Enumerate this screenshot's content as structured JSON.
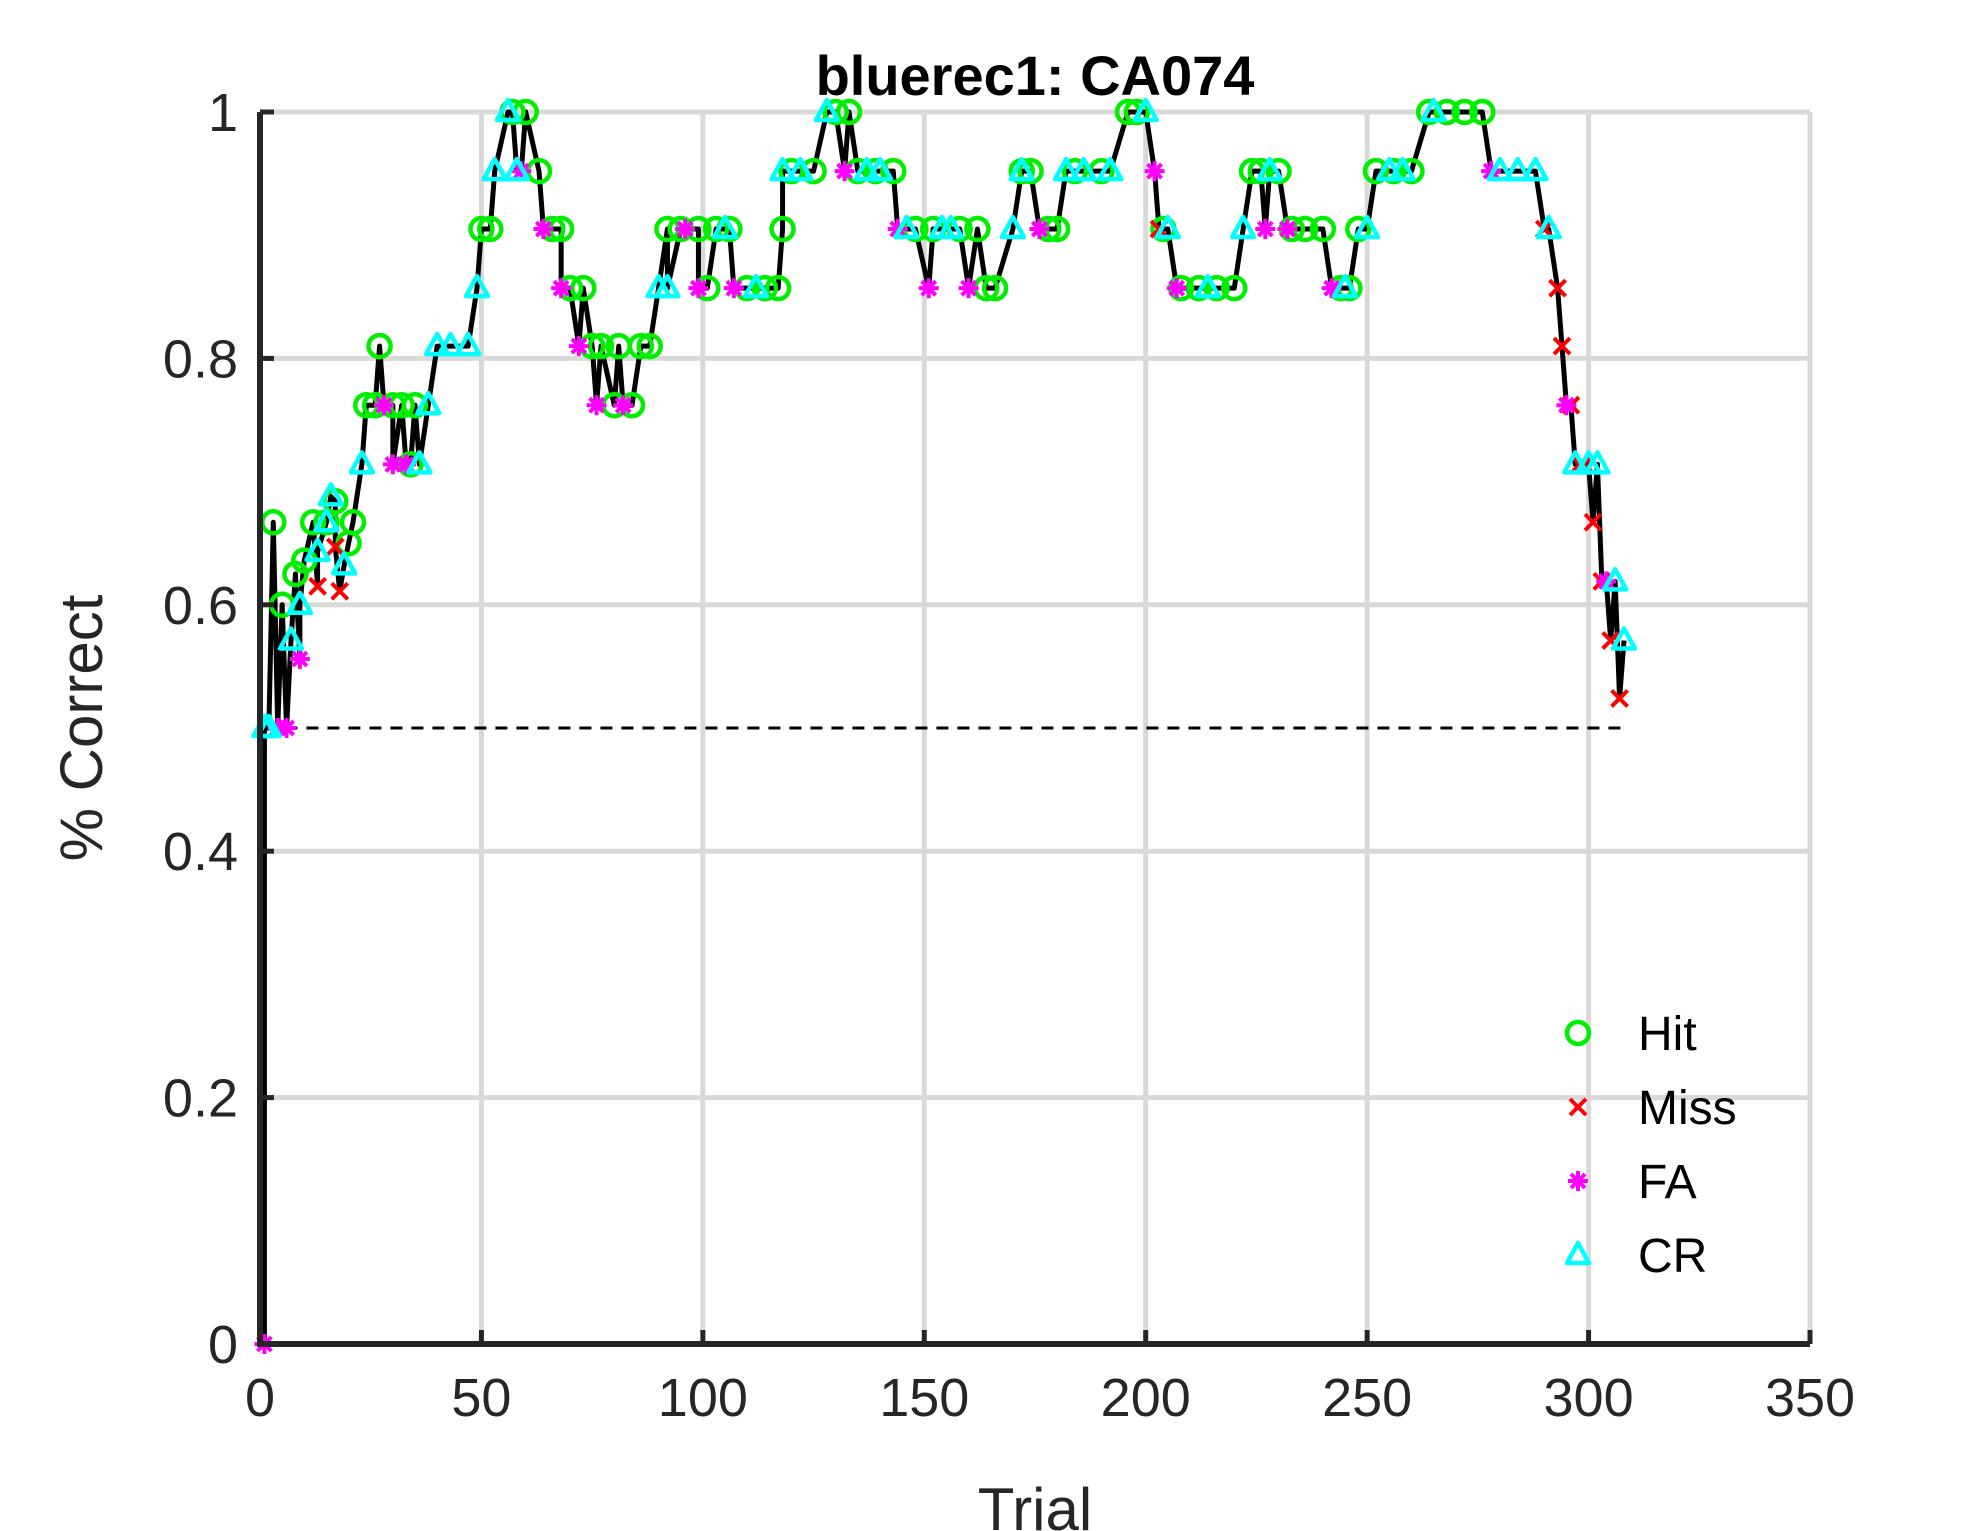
{
  "chart_data": {
    "type": "line",
    "title": "bluerec1: CA074",
    "xlabel": "Trial",
    "ylabel": "% Correct",
    "xlim": [
      0,
      350
    ],
    "ylim": [
      0,
      1
    ],
    "xticks": [
      0,
      50,
      100,
      150,
      200,
      250,
      300,
      350
    ],
    "yticks": [
      0,
      0.2,
      0.4,
      0.6,
      0.8,
      1
    ],
    "ytick_labels": [
      "0",
      "0.2",
      "0.4",
      "0.6",
      "0.8",
      "1"
    ],
    "grid": true,
    "legend_position": "bottom-right",
    "reference_line": {
      "y": 0.5,
      "x_range": [
        1,
        308
      ],
      "style": "dashed"
    },
    "colors": {
      "line": "#000000",
      "hit": "#00ee00",
      "miss": "#ff0000",
      "fa": "#ff00ff",
      "cr": "#00ffff",
      "grid": "#d9d9d9"
    },
    "legend": [
      {
        "key": "hit",
        "label": "Hit"
      },
      {
        "key": "miss",
        "label": "Miss"
      },
      {
        "key": "fa",
        "label": "FA"
      },
      {
        "key": "cr",
        "label": "CR"
      }
    ],
    "series": [
      {
        "name": "Hit",
        "key": "hit",
        "marker": "circle",
        "points": [
          [
            3,
            0.667
          ],
          [
            5,
            0.6
          ],
          [
            8,
            0.625
          ],
          [
            10,
            0.636
          ],
          [
            12,
            0.667
          ],
          [
            15,
            0.667
          ],
          [
            17,
            0.684
          ],
          [
            20,
            0.65
          ],
          [
            21,
            0.667
          ],
          [
            24,
            0.762
          ],
          [
            26,
            0.762
          ],
          [
            27,
            0.81
          ],
          [
            30,
            0.762
          ],
          [
            32,
            0.762
          ],
          [
            34,
            0.714
          ],
          [
            35,
            0.762
          ],
          [
            50,
            0.905
          ],
          [
            52,
            0.905
          ],
          [
            57,
            1.0
          ],
          [
            60,
            1.0
          ],
          [
            63,
            0.952
          ],
          [
            66,
            0.905
          ],
          [
            68,
            0.905
          ],
          [
            70,
            0.857
          ],
          [
            73,
            0.857
          ],
          [
            75,
            0.81
          ],
          [
            77,
            0.81
          ],
          [
            80,
            0.762
          ],
          [
            81,
            0.81
          ],
          [
            84,
            0.762
          ],
          [
            86,
            0.81
          ],
          [
            88,
            0.81
          ],
          [
            92,
            0.905
          ],
          [
            95,
            0.905
          ],
          [
            99,
            0.905
          ],
          [
            101,
            0.857
          ],
          [
            103,
            0.905
          ],
          [
            106,
            0.905
          ],
          [
            110,
            0.857
          ],
          [
            114,
            0.857
          ],
          [
            117,
            0.857
          ],
          [
            118,
            0.905
          ],
          [
            120,
            0.952
          ],
          [
            125,
            0.952
          ],
          [
            130,
            1.0
          ],
          [
            133,
            1.0
          ],
          [
            135,
            0.952
          ],
          [
            139,
            0.952
          ],
          [
            143,
            0.952
          ],
          [
            148,
            0.905
          ],
          [
            152,
            0.905
          ],
          [
            158,
            0.905
          ],
          [
            162,
            0.905
          ],
          [
            164,
            0.857
          ],
          [
            166,
            0.857
          ],
          [
            172,
            0.952
          ],
          [
            174,
            0.952
          ],
          [
            178,
            0.905
          ],
          [
            180,
            0.905
          ],
          [
            184,
            0.952
          ],
          [
            190,
            0.952
          ],
          [
            196,
            1.0
          ],
          [
            198,
            1.0
          ],
          [
            204,
            0.905
          ],
          [
            208,
            0.857
          ],
          [
            212,
            0.857
          ],
          [
            216,
            0.857
          ],
          [
            220,
            0.857
          ],
          [
            224,
            0.952
          ],
          [
            226,
            0.952
          ],
          [
            230,
            0.952
          ],
          [
            233,
            0.905
          ],
          [
            236,
            0.905
          ],
          [
            240,
            0.905
          ],
          [
            244,
            0.857
          ],
          [
            246,
            0.857
          ],
          [
            248,
            0.905
          ],
          [
            252,
            0.952
          ],
          [
            256,
            0.952
          ],
          [
            260,
            0.952
          ],
          [
            264,
            1.0
          ],
          [
            268,
            1.0
          ],
          [
            272,
            1.0
          ],
          [
            276,
            1.0
          ]
        ]
      },
      {
        "name": "Miss",
        "key": "miss",
        "marker": "x",
        "points": [
          [
            13,
            0.615
          ],
          [
            17,
            0.647
          ],
          [
            18,
            0.611
          ],
          [
            203,
            0.905
          ],
          [
            290,
            0.905
          ],
          [
            293,
            0.857
          ],
          [
            294,
            0.81
          ],
          [
            296,
            0.762
          ],
          [
            298,
            0.714
          ],
          [
            299,
            0.714
          ],
          [
            301,
            0.667
          ],
          [
            303,
            0.619
          ],
          [
            305,
            0.571
          ],
          [
            307,
            0.524
          ]
        ]
      },
      {
        "name": "FA",
        "key": "fa",
        "marker": "asterisk",
        "points": [
          [
            1,
            0.0
          ],
          [
            4,
            0.5
          ],
          [
            6,
            0.5
          ],
          [
            9,
            0.556
          ],
          [
            28,
            0.762
          ],
          [
            30,
            0.714
          ],
          [
            33,
            0.714
          ],
          [
            59,
            0.952
          ],
          [
            64,
            0.905
          ],
          [
            68,
            0.857
          ],
          [
            72,
            0.81
          ],
          [
            76,
            0.762
          ],
          [
            82,
            0.762
          ],
          [
            96,
            0.905
          ],
          [
            99,
            0.857
          ],
          [
            107,
            0.857
          ],
          [
            132,
            0.952
          ],
          [
            144,
            0.905
          ],
          [
            151,
            0.857
          ],
          [
            160,
            0.857
          ],
          [
            176,
            0.905
          ],
          [
            202,
            0.952
          ],
          [
            207,
            0.857
          ],
          [
            227,
            0.905
          ],
          [
            232,
            0.905
          ],
          [
            242,
            0.857
          ],
          [
            278,
            0.952
          ],
          [
            295,
            0.762
          ],
          [
            304,
            0.619
          ]
        ]
      },
      {
        "name": "CR",
        "key": "cr",
        "marker": "triangle",
        "points": [
          [
            1,
            0.5
          ],
          [
            2,
            0.5
          ],
          [
            7,
            0.571
          ],
          [
            9,
            0.6
          ],
          [
            13,
            0.643
          ],
          [
            15,
            0.667
          ],
          [
            16,
            0.688
          ],
          [
            19,
            0.632
          ],
          [
            23,
            0.714
          ],
          [
            36,
            0.714
          ],
          [
            38,
            0.762
          ],
          [
            40,
            0.81
          ],
          [
            43,
            0.81
          ],
          [
            47,
            0.81
          ],
          [
            49,
            0.857
          ],
          [
            53,
            0.952
          ],
          [
            56,
            1.0
          ],
          [
            58,
            0.952
          ],
          [
            90,
            0.857
          ],
          [
            92,
            0.857
          ],
          [
            105,
            0.905
          ],
          [
            112,
            0.857
          ],
          [
            118,
            0.952
          ],
          [
            122,
            0.952
          ],
          [
            128,
            1.0
          ],
          [
            137,
            0.952
          ],
          [
            140,
            0.952
          ],
          [
            146,
            0.905
          ],
          [
            154,
            0.905
          ],
          [
            156,
            0.905
          ],
          [
            170,
            0.905
          ],
          [
            172,
            0.952
          ],
          [
            182,
            0.952
          ],
          [
            186,
            0.952
          ],
          [
            192,
            0.952
          ],
          [
            200,
            1.0
          ],
          [
            205,
            0.905
          ],
          [
            214,
            0.857
          ],
          [
            222,
            0.905
          ],
          [
            228,
            0.952
          ],
          [
            245,
            0.857
          ],
          [
            250,
            0.905
          ],
          [
            255,
            0.952
          ],
          [
            258,
            0.952
          ],
          [
            265,
            1.0
          ],
          [
            280,
            0.952
          ],
          [
            284,
            0.952
          ],
          [
            288,
            0.952
          ],
          [
            291,
            0.905
          ],
          [
            297,
            0.714
          ],
          [
            300,
            0.714
          ],
          [
            302,
            0.714
          ],
          [
            306,
            0.619
          ],
          [
            308,
            0.571
          ]
        ]
      }
    ]
  }
}
